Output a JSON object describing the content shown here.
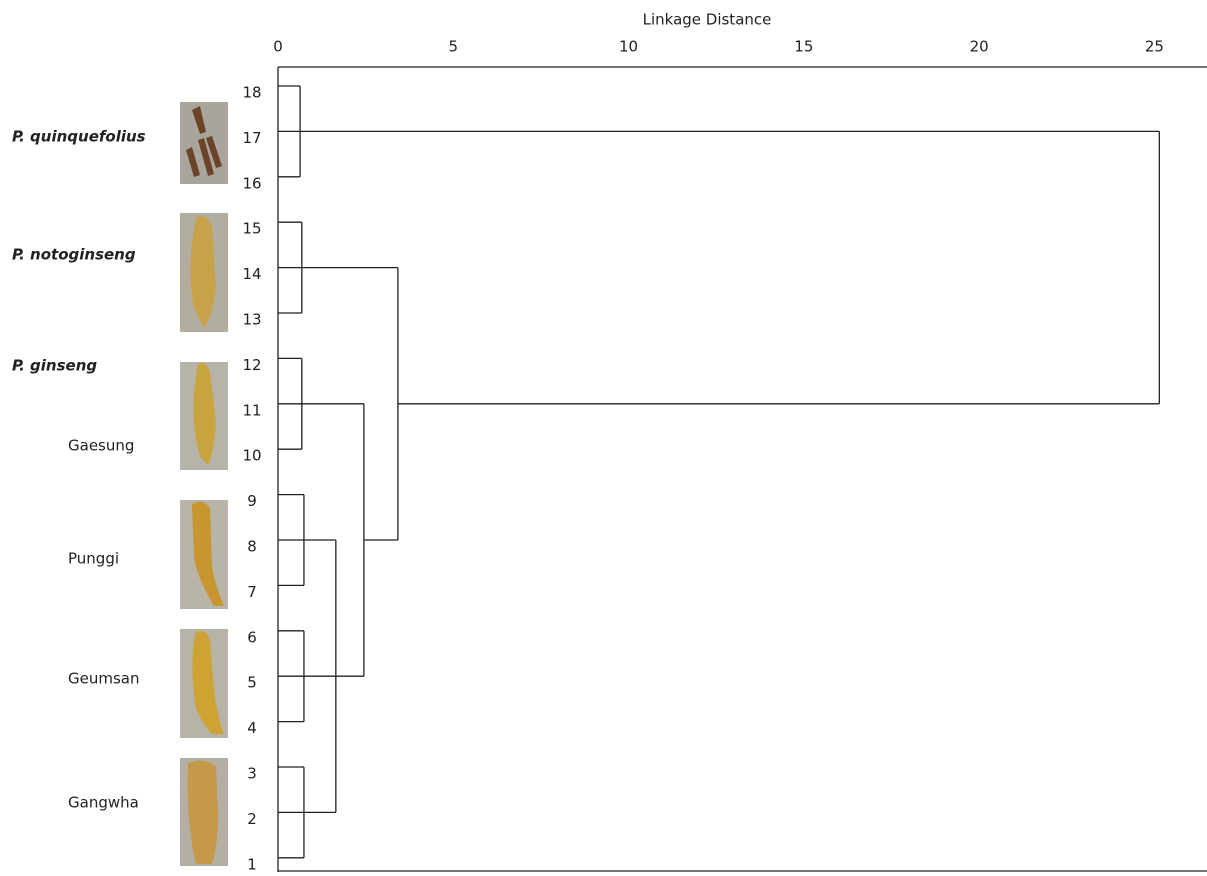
{
  "chart_data": {
    "type": "dendrogram",
    "x_label": "Linkage Distance",
    "xlim": [
      0,
      26.5
    ],
    "xticks": [
      0,
      5,
      10,
      15,
      20,
      25
    ],
    "leaves": [
      "18",
      "17",
      "16",
      "15",
      "14",
      "13",
      "12",
      "11",
      "10",
      "9",
      "8",
      "7",
      "6",
      "5",
      "4",
      "3",
      "2",
      "1"
    ],
    "tree": {
      "height": 25.14,
      "children": [
        {
          "height": 0.63,
          "children": [
            "18",
            "17",
            "16"
          ]
        },
        {
          "height": 3.42,
          "children": [
            {
              "height": 0.68,
              "children": [
                "15",
                "14",
                "13"
              ]
            },
            {
              "height": 2.45,
              "children": [
                {
                  "height": 0.68,
                  "children": [
                    "12",
                    "11",
                    "10"
                  ]
                },
                {
                  "height": 1.65,
                  "children": [
                    {
                      "height": 0.74,
                      "children": [
                        "9",
                        "8",
                        "7"
                      ]
                    },
                    {
                      "height": 0.74,
                      "children": [
                        "6",
                        "5",
                        "4"
                      ]
                    },
                    {
                      "height": 0.74,
                      "children": [
                        "3",
                        "2",
                        "1"
                      ]
                    }
                  ]
                }
              ]
            }
          ]
        }
      ]
    },
    "groups": [
      {
        "label": "P. quinquefolius",
        "italic": true
      },
      {
        "label": "P. notoginseng",
        "italic": true
      },
      {
        "label": "P. ginseng",
        "italic": true
      },
      {
        "label": "Gaesung",
        "italic": false
      },
      {
        "label": "Punggi",
        "italic": false
      },
      {
        "label": "Geumsan",
        "italic": false
      },
      {
        "label": "Gangwha",
        "italic": false
      }
    ]
  }
}
